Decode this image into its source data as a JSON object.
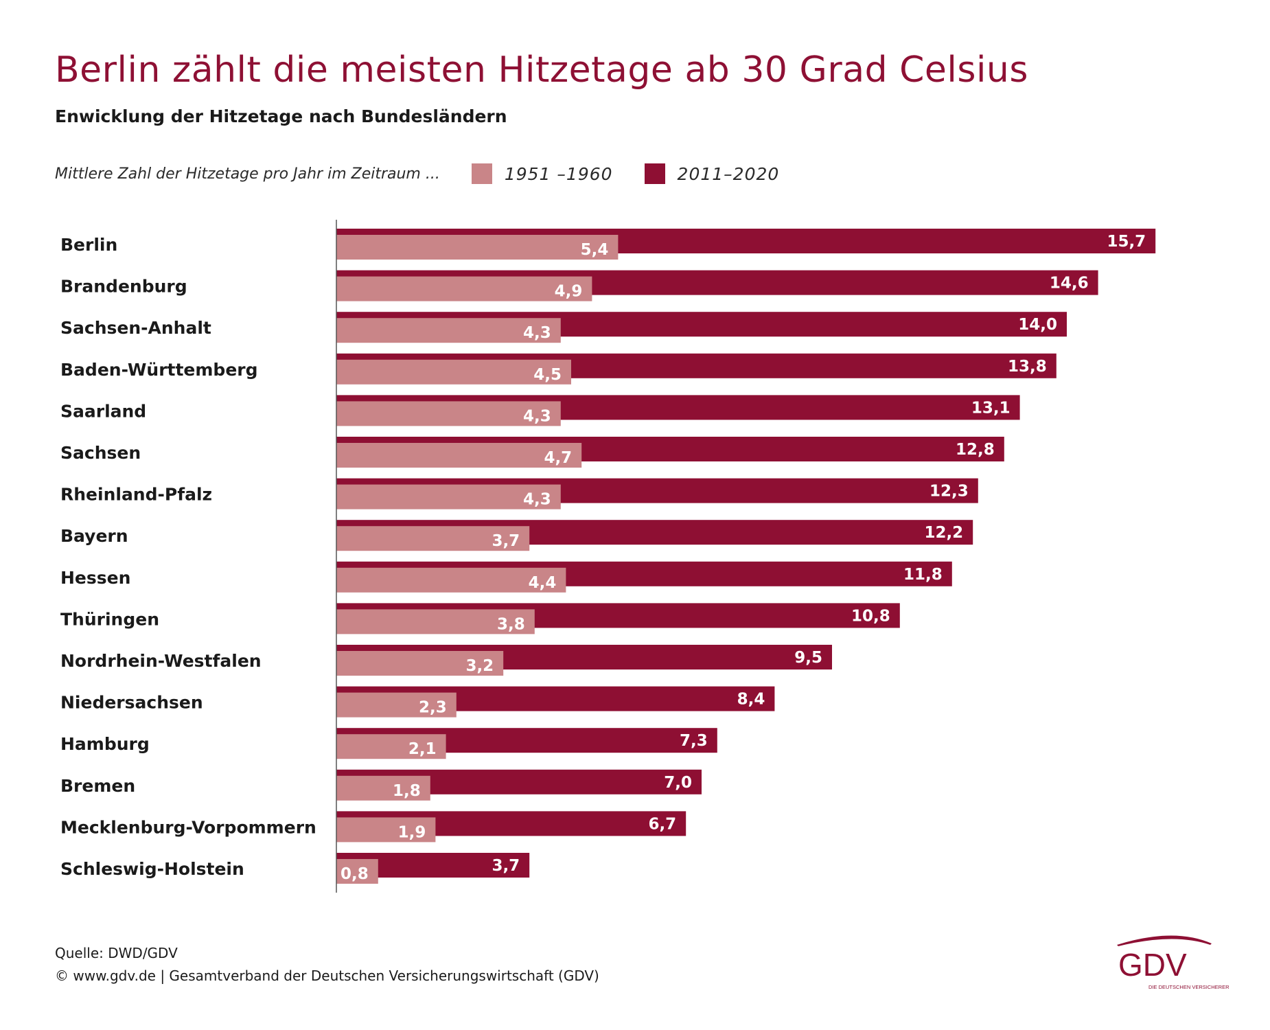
{
  "title": "Berlin zählt die meisten Hitzetage ab 30 Grad Celsius",
  "subtitle": "Enwicklung der Hitzetage nach Bundesländern",
  "legend": {
    "caption": "Mittlere Zahl der Hitzetage pro Jahr im Zeitraum ...",
    "items": [
      {
        "label": "1951 –1960",
        "color": "#c98588"
      },
      {
        "label": "2011–2020",
        "color": "#8e0f33"
      }
    ]
  },
  "chart_data": {
    "type": "bar",
    "orientation": "horizontal",
    "categories": [
      "Berlin",
      "Brandenburg",
      "Sachsen-Anhalt",
      "Baden-Württemberg",
      "Saarland",
      "Sachsen",
      "Rheinland-Pfalz",
      "Bayern",
      "Hessen",
      "Thüringen",
      "Nordrhein-Westfalen",
      "Niedersachsen",
      "Hamburg",
      "Bremen",
      "Mecklenburg-Vorpommern",
      "Schleswig-Holstein"
    ],
    "series": [
      {
        "name": "2011–2020",
        "color": "#8e0f33",
        "values": [
          15.7,
          14.6,
          14.0,
          13.8,
          13.1,
          12.8,
          12.3,
          12.2,
          11.8,
          10.8,
          9.5,
          8.4,
          7.3,
          7.0,
          6.7,
          3.7
        ],
        "labels": [
          "15,7",
          "14,6",
          "14,0",
          "13,8",
          "13,1",
          "12,8",
          "12,3",
          "12,2",
          "11,8",
          "10,8",
          "9,5",
          "8,4",
          "7,3",
          "7,0",
          "6,7",
          "3,7"
        ]
      },
      {
        "name": "1951 –1960",
        "color": "#c98588",
        "values": [
          5.4,
          4.9,
          4.3,
          4.5,
          4.3,
          4.7,
          4.3,
          3.7,
          4.4,
          3.8,
          3.2,
          2.3,
          2.1,
          1.8,
          1.9,
          0.8
        ],
        "labels": [
          "5,4",
          "4,9",
          "4,3",
          "4,5",
          "4,3",
          "4,7",
          "4,3",
          "3,7",
          "4,4",
          "3,8",
          "3,2",
          "2,3",
          "2,1",
          "1,8",
          "1,9",
          "0,8"
        ]
      }
    ],
    "xlim": [
      0,
      16
    ],
    "grid": false,
    "legend_position": "top"
  },
  "footer": {
    "source": "Quelle: DWD/GDV",
    "copyright": "© www.gdv.de | Gesamtverband der Deutschen Versicherungswirtschaft (GDV)"
  },
  "logo": {
    "text": "GDV",
    "tagline": "DIE DEUTSCHEN VERSICHERER"
  }
}
